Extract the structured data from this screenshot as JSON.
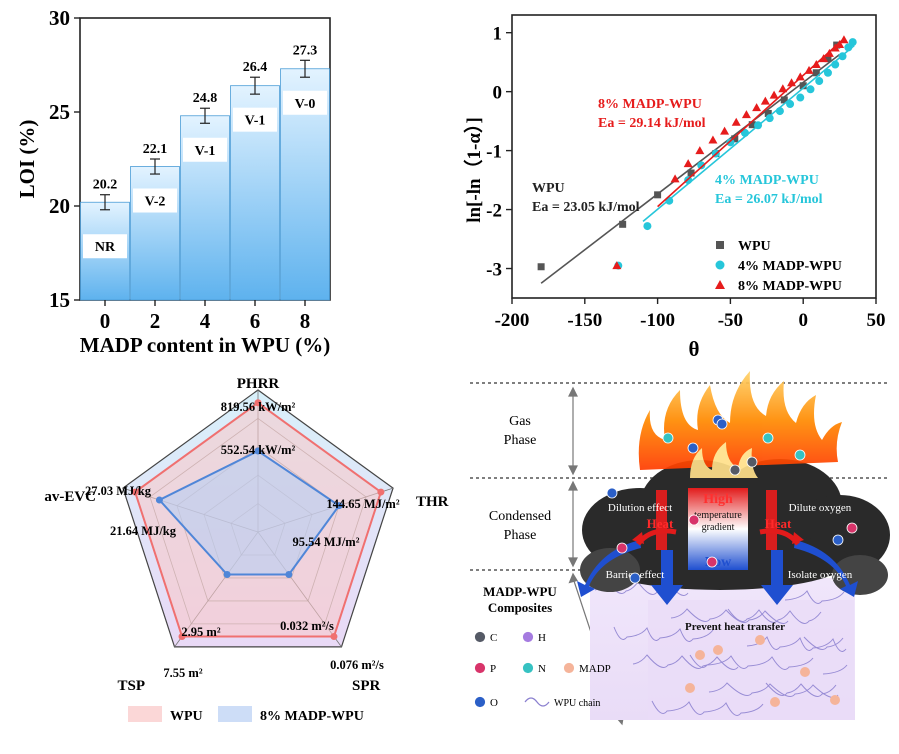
{
  "chart_data": [
    {
      "type": "bar",
      "xlabel": "MADP content in WPU (%)",
      "ylabel": "LOI (%)",
      "ylim": [
        15,
        30
      ],
      "yticks": [
        "15",
        "20",
        "25",
        "30"
      ],
      "categories": [
        "0",
        "2",
        "4",
        "6",
        "8"
      ],
      "values": [
        20.2,
        22.1,
        24.8,
        26.4,
        27.3
      ],
      "value_labels": [
        "20.2",
        "22.1",
        "24.8",
        "26.4",
        "27.3"
      ],
      "errors": [
        0.4,
        0.4,
        0.4,
        0.45,
        0.45
      ],
      "ratings": [
        "NR",
        "V-2",
        "V-1",
        "V-1",
        "V-0"
      ],
      "colors": {
        "bar_top": "#dcefff",
        "bar_bottom": "#63b6f0",
        "bar_edge": "#4a9cd6"
      }
    },
    {
      "type": "scatter",
      "xlabel": "θ",
      "ylabel": "ln[-ln（1-α）]",
      "xlim": [
        -200,
        50
      ],
      "ylim": [
        -3.5,
        1.3
      ],
      "xticks": [
        "-200",
        "-150",
        "-100",
        "-50",
        "0",
        "50"
      ],
      "yticks": [
        "-3",
        "-2",
        "-1",
        "0",
        "1"
      ],
      "legend": "bottom-right",
      "series": [
        {
          "name": "WPU",
          "color": "#555555",
          "marker": "square",
          "x": [
            -180,
            -124,
            -100,
            -77,
            -60,
            -47,
            -35,
            -24,
            -13,
            0,
            9,
            17,
            23
          ],
          "y": [
            -2.97,
            -2.25,
            -1.75,
            -1.38,
            -1.05,
            -0.8,
            -0.56,
            -0.37,
            -0.14,
            0.1,
            0.32,
            0.56,
            0.79
          ],
          "fit": [
            [
              -180,
              -3.25
            ],
            [
              25,
              0.63
            ]
          ],
          "annotation": [
            "WPU",
            "Ea = 23.05 kJ/mol"
          ]
        },
        {
          "name": "4% MADP-WPU",
          "color": "#26c6da",
          "marker": "circle",
          "x": [
            -127,
            -107,
            -92,
            -79,
            -70,
            -60,
            -50,
            -40,
            -31,
            -23,
            -16,
            -9,
            -2,
            5,
            11,
            17,
            22,
            27,
            31,
            34
          ],
          "y": [
            -2.95,
            -2.28,
            -1.85,
            -1.5,
            -1.25,
            -1.05,
            -0.86,
            -0.7,
            -0.57,
            -0.45,
            -0.33,
            -0.21,
            -0.1,
            0.04,
            0.18,
            0.32,
            0.46,
            0.6,
            0.75,
            0.84
          ],
          "fit": [
            [
              -110,
              -2.2
            ],
            [
              35,
              0.78
            ]
          ],
          "annotation": [
            "4% MADP-WPU",
            "Ea = 26.07 kJ/mol"
          ]
        },
        {
          "name": "8% MADP-WPU",
          "color": "#e61c1c",
          "marker": "triangle",
          "x": [
            -128,
            -88,
            -79,
            -71,
            -62,
            -54,
            -46,
            -39,
            -32,
            -26,
            -20,
            -14,
            -8,
            -2,
            4,
            9,
            14,
            18,
            22,
            25,
            28
          ],
          "y": [
            -2.95,
            -1.48,
            -1.22,
            -1.0,
            -0.82,
            -0.67,
            -0.52,
            -0.39,
            -0.27,
            -0.16,
            -0.06,
            0.05,
            0.15,
            0.25,
            0.36,
            0.46,
            0.56,
            0.65,
            0.74,
            0.8,
            0.88
          ],
          "fit": [
            [
              -100,
              -1.95
            ],
            [
              28,
              0.9
            ]
          ],
          "annotation": [
            "8% MADP-WPU",
            "Ea = 29.14 kJ/mol"
          ]
        }
      ]
    },
    {
      "type": "radar",
      "axes": [
        "PHRR",
        "THR",
        "SPR",
        "TSP",
        "av-EVC"
      ],
      "series": [
        {
          "name": "WPU",
          "color": "#f07070",
          "fill": "#f9c6c6",
          "values": [
            0.91,
            0.91,
            0.91,
            0.91,
            0.91
          ],
          "labels": [
            "819.56 kW/m²",
            "144.65 MJ/m²",
            "0.076 m²/s",
            "7.55 m²",
            "27.03 MJ/kg"
          ]
        },
        {
          "name": "8% MADP-WPU",
          "color": "#4f86d8",
          "fill": "#b8cff4",
          "values": [
            0.57,
            0.6,
            0.37,
            0.37,
            0.73
          ],
          "labels": [
            "552.54 kW/m²",
            "95.54 MJ/m²",
            "0.032 m²/s",
            "2.95 m²",
            "21.64 MJ/kg"
          ]
        }
      ]
    }
  ],
  "schematic": {
    "zones": [
      "Gas\nPhase",
      "Condensed\nPhase",
      "MADP-WPU\nComposites"
    ],
    "labels": {
      "dilution": "Dilution effect",
      "dilute_oxygen": "Dilute oxygen",
      "heat_left": "Heat",
      "heat_right": "Heat",
      "high": "High",
      "gradient": "temperature\ngradient",
      "low": "Low",
      "barrier": "Barrier effect",
      "isolate": "Isolate oxygen",
      "prevent": "Prevent heat transfer"
    },
    "legend": [
      {
        "symbol": "C",
        "color": "#555a66"
      },
      {
        "symbol": "H",
        "color": "#a57be0"
      },
      {
        "symbol": "P",
        "color": "#d8346a"
      },
      {
        "symbol": "N",
        "color": "#36c2c2"
      },
      {
        "symbol": "MADP",
        "color": "#f5b49a"
      },
      {
        "symbol": "O",
        "color": "#2b5fc7"
      },
      {
        "symbol": "WPU chain",
        "color": "#8a7fcf"
      }
    ]
  }
}
